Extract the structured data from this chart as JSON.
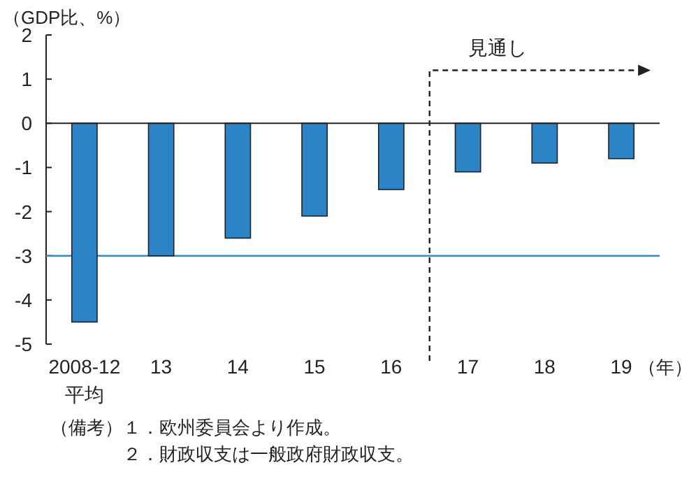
{
  "chart_data": {
    "type": "bar",
    "ylabel": "（GDP比、%）",
    "xlabel": "（年）",
    "categories": [
      "2008-12\n平均",
      "13",
      "14",
      "15",
      "16",
      "17",
      "18",
      "19"
    ],
    "values": [
      -4.5,
      -3.0,
      -2.6,
      -2.1,
      -1.5,
      -1.1,
      -0.9,
      -0.8
    ],
    "color": "#2a84c6",
    "ylim": [
      -5,
      2
    ],
    "yticks": [
      -5,
      -4,
      -3,
      -2,
      -1,
      0,
      1,
      2
    ],
    "ref_lines": [
      {
        "axis": "y",
        "value": -3,
        "color": "#2e8fd6"
      }
    ],
    "annotations": [
      "見通し",
      "（備考）",
      "１．欧州委員会より作成。",
      "２．財政収支は一般政府財政収支。"
    ],
    "grid": false
  }
}
